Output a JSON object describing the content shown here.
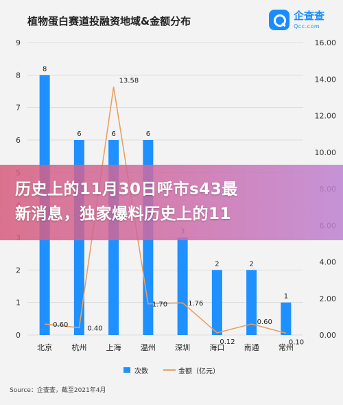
{
  "title": "植物蛋白赛道投融资地域&金额分布",
  "logo": {
    "name": "企查查",
    "sub": "Qcc.com"
  },
  "source": "Source：企查查，截至2021年4月",
  "banner": {
    "line1": "历史上的11月30日呼市s43最",
    "line2": "新消息，独家爆料历史上的11"
  },
  "colors": {
    "bar": "#1e90ff",
    "line": "#e8a060",
    "background": "#f3f3f3",
    "grid": "#dcdcdc"
  },
  "chart_data": {
    "type": "bar",
    "categories": [
      "北京",
      "杭州",
      "上海",
      "温州",
      "深圳",
      "海口",
      "南通",
      "常州"
    ],
    "series": [
      {
        "name": "次数",
        "type": "bar",
        "axis": "left",
        "values": [
          8,
          6,
          6,
          6,
          3,
          2,
          2,
          1
        ]
      },
      {
        "name": "金额（亿元）",
        "type": "line",
        "axis": "right",
        "values": [
          0.6,
          0.4,
          13.58,
          1.7,
          1.76,
          0.12,
          0.6,
          0.1
        ]
      }
    ],
    "bar_labels": [
      "8",
      "6",
      "6",
      "6",
      "3",
      "2",
      "2",
      "1"
    ],
    "line_labels": [
      "0.60",
      "0.40",
      "13.58",
      "1.70",
      "1.76",
      "0.12",
      "0.60",
      "0.10"
    ],
    "y_left": {
      "range": [
        0,
        9
      ],
      "ticks": [
        "0",
        "1",
        "2",
        "3",
        "4",
        "5",
        "6",
        "7",
        "8",
        "9"
      ]
    },
    "y_right": {
      "range": [
        0,
        16
      ],
      "ticks": [
        "0.00",
        "2.00",
        "4.00",
        "6.00",
        "8.00",
        "10.00",
        "12.00",
        "14.00",
        "16.00"
      ]
    },
    "grid": true,
    "legend": "bottom"
  }
}
